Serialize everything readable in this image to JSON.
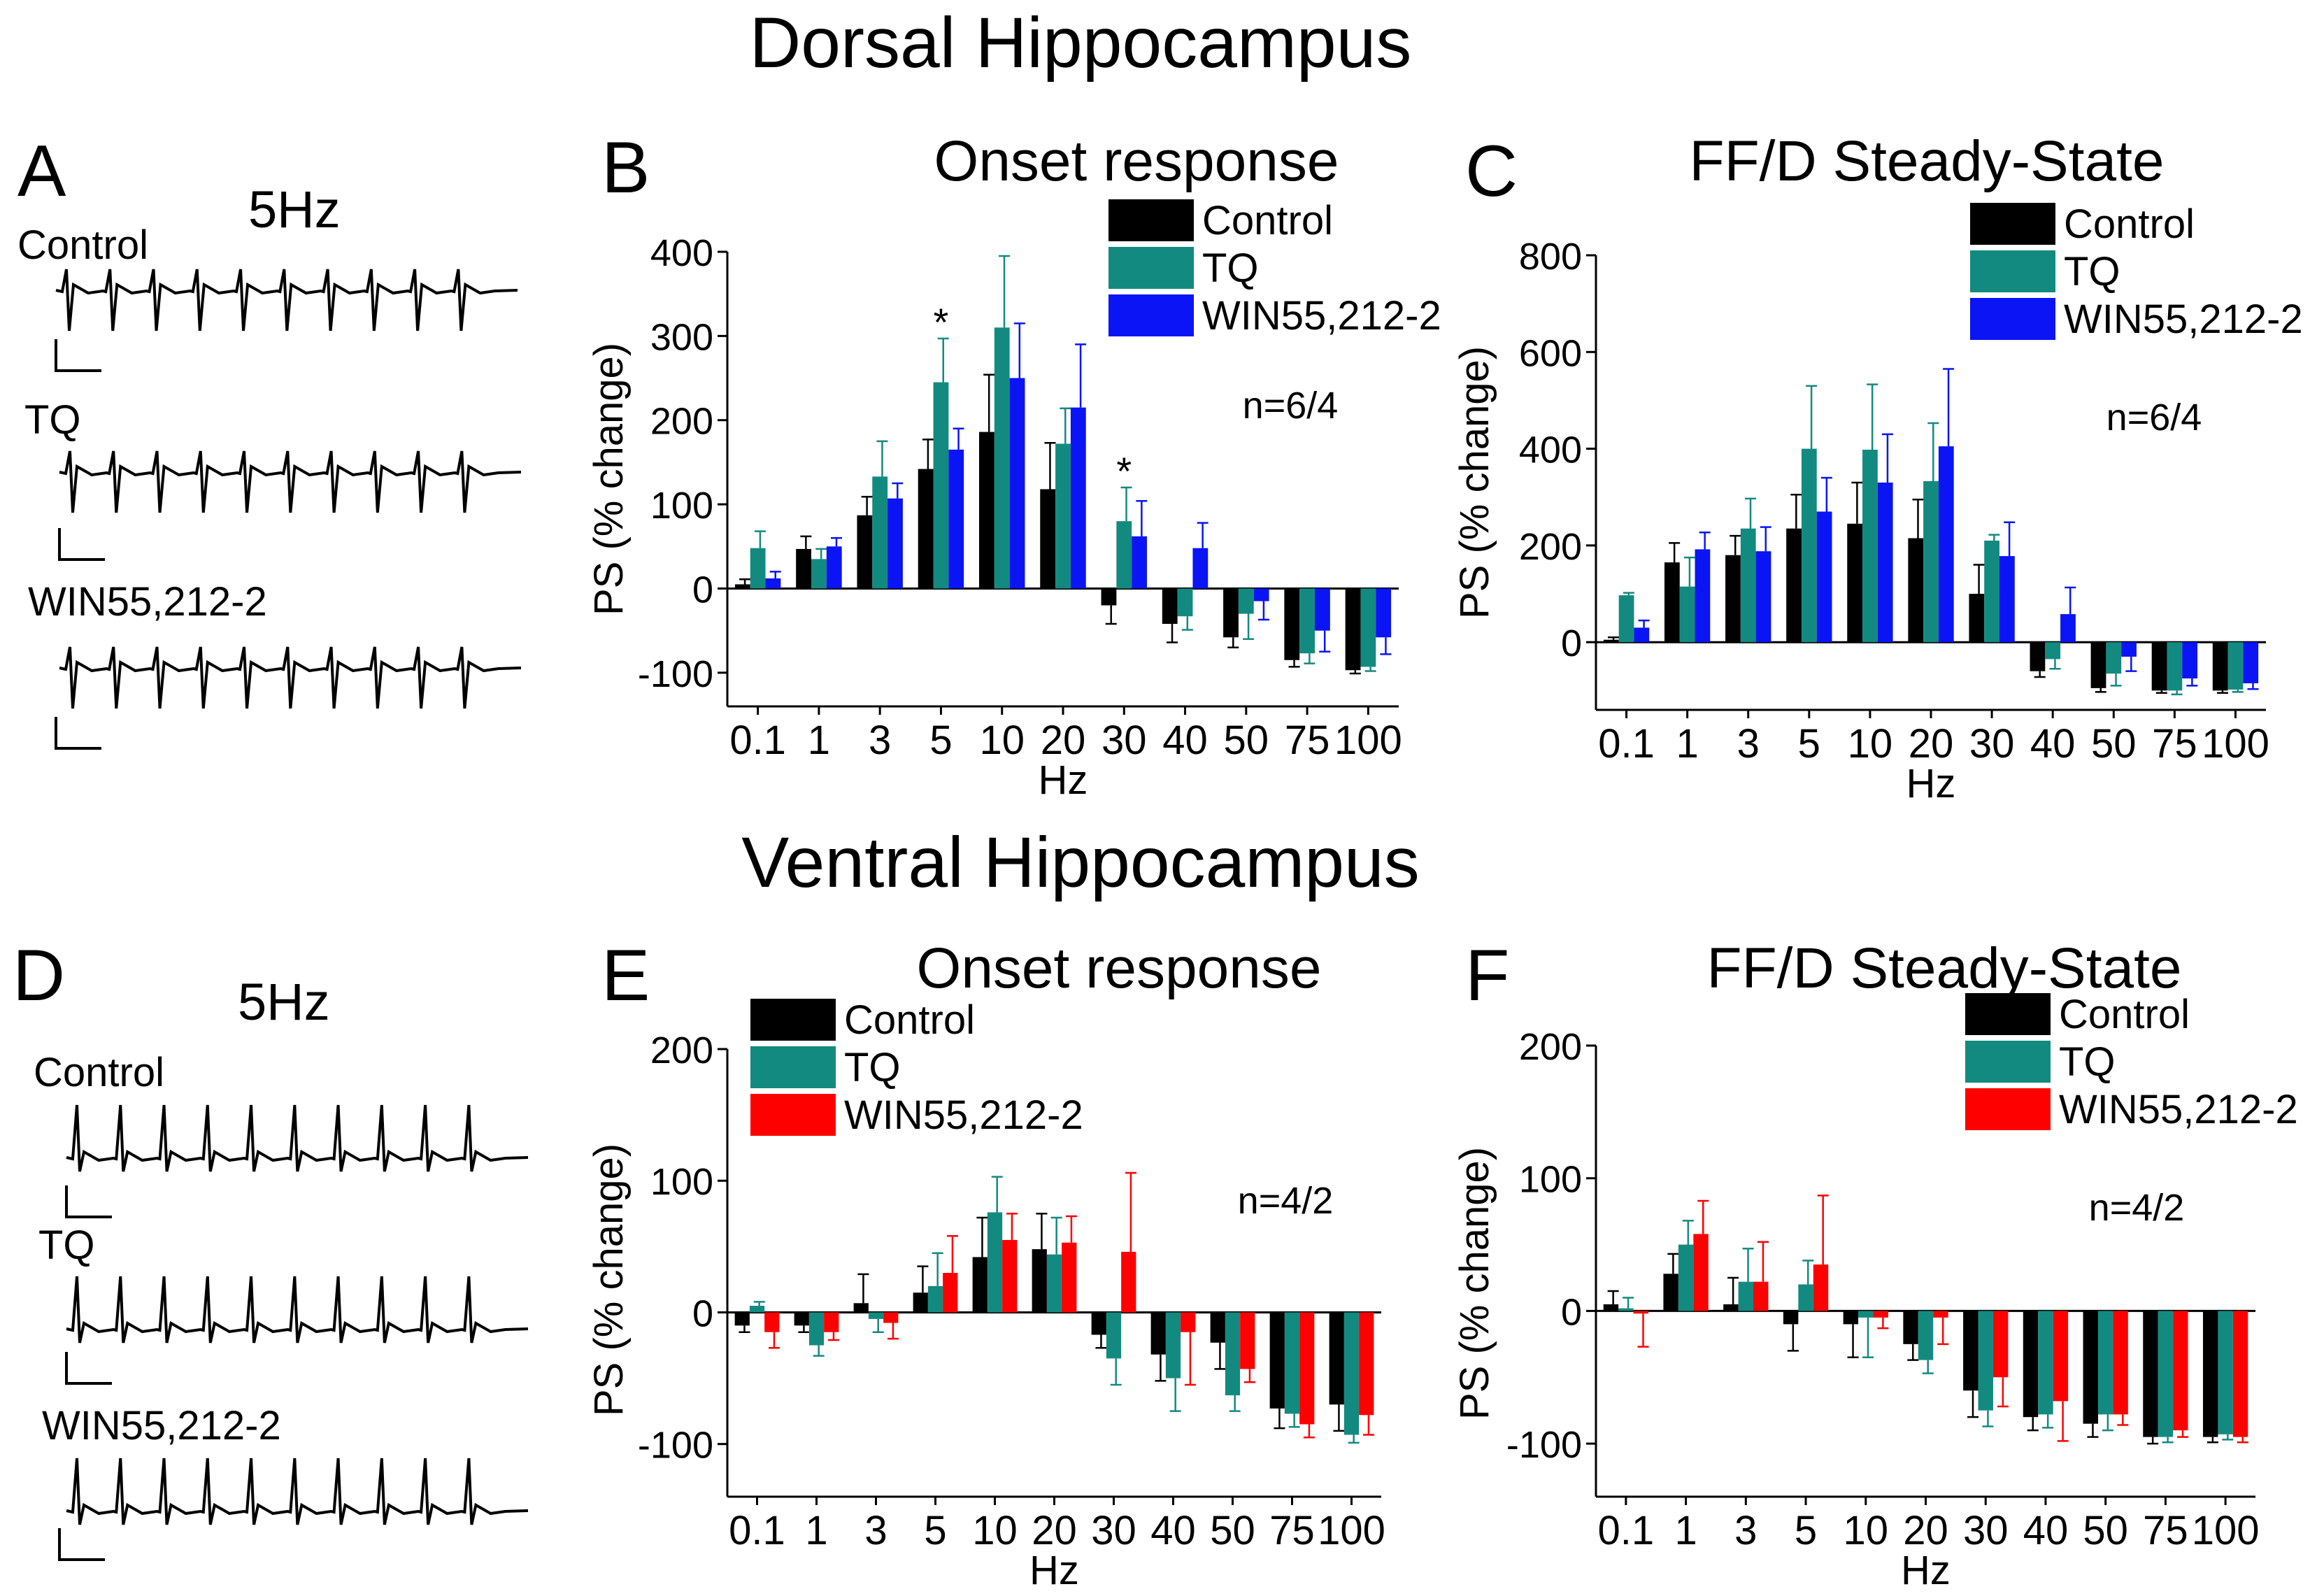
{
  "sections": {
    "dorsal_title": "Dorsal Hippocampus",
    "ventral_title": "Ventral Hippocampus"
  },
  "trace_panels": [
    {
      "letter": "A",
      "frequency": "5Hz",
      "trace_labels": [
        "Control",
        "TQ",
        "WIN55,212-2"
      ]
    },
    {
      "letter": "D",
      "frequency": "5Hz",
      "trace_labels": [
        "Control",
        "TQ",
        "WIN55,212-2"
      ]
    }
  ],
  "colors": {
    "control": "#000000",
    "tq": "#138a80",
    "win_dorsal": "#0a14f5",
    "win_ventral": "#ff0000"
  },
  "chart_data": [
    {
      "panel": "B",
      "title": "Onset response",
      "type": "bar",
      "xlabel": "Hz",
      "ylabel": "PS (% change)",
      "ylim": [
        -140,
        400
      ],
      "yticks": [
        -100,
        0,
        100,
        200,
        300,
        400
      ],
      "categories": [
        "0.1",
        "1",
        "3",
        "5",
        "10",
        "20",
        "30",
        "40",
        "50",
        "75",
        "100"
      ],
      "n_label": "n=6/4",
      "legend_position": "top-right",
      "series": [
        {
          "name": "Control",
          "color": "#000000",
          "values": [
            5,
            47,
            87,
            142,
            186,
            118,
            -20,
            -42,
            -58,
            -85,
            -97
          ],
          "errors": [
            6,
            15,
            22,
            35,
            68,
            55,
            22,
            22,
            12,
            8,
            4
          ]
        },
        {
          "name": "TQ",
          "color": "#138a80",
          "values": [
            48,
            35,
            133,
            245,
            310,
            172,
            80,
            -33,
            -30,
            -77,
            -93
          ],
          "errors": [
            20,
            12,
            42,
            52,
            85,
            42,
            40,
            16,
            30,
            12,
            5
          ]
        },
        {
          "name": "WIN55,212-2",
          "color": "#0a14f5",
          "values": [
            12,
            50,
            107,
            165,
            250,
            215,
            62,
            48,
            -15,
            -50,
            -58
          ],
          "errors": [
            8,
            10,
            18,
            25,
            65,
            75,
            42,
            30,
            22,
            25,
            20
          ]
        }
      ],
      "annotations": [
        {
          "text": "*",
          "category": "5"
        },
        {
          "text": "*",
          "category": "30"
        }
      ]
    },
    {
      "panel": "C",
      "title": "FF/D Steady-State",
      "type": "bar",
      "xlabel": "Hz",
      "ylabel": "PS (% change)",
      "ylim": [
        -140,
        800
      ],
      "yticks": [
        0,
        200,
        400,
        600,
        800
      ],
      "categories": [
        "0.1",
        "1",
        "3",
        "5",
        "10",
        "20",
        "30",
        "40",
        "50",
        "75",
        "100"
      ],
      "n_label": "n=6/4",
      "legend_position": "top-right",
      "series": [
        {
          "name": "Control",
          "color": "#000000",
          "values": [
            5,
            165,
            180,
            235,
            245,
            215,
            100,
            -60,
            -95,
            -100,
            -100
          ],
          "errors": [
            5,
            40,
            40,
            70,
            85,
            80,
            60,
            12,
            8,
            5,
            5
          ]
        },
        {
          "name": "TQ",
          "color": "#138a80",
          "values": [
            97,
            115,
            235,
            400,
            398,
            333,
            210,
            -35,
            -65,
            -100,
            -98
          ],
          "errors": [
            5,
            60,
            62,
            130,
            135,
            120,
            12,
            20,
            25,
            8,
            5
          ]
        },
        {
          "name": "WIN55,212-2",
          "color": "#0a14f5",
          "values": [
            30,
            192,
            188,
            270,
            330,
            405,
            178,
            58,
            -30,
            -75,
            -85
          ],
          "errors": [
            15,
            35,
            50,
            70,
            100,
            160,
            70,
            55,
            30,
            15,
            12
          ]
        }
      ]
    },
    {
      "panel": "E",
      "title": "Onset response",
      "type": "bar",
      "xlabel": "Hz",
      "ylabel": "PS (% change)",
      "ylim": [
        -140,
        200
      ],
      "yticks": [
        -100,
        0,
        100,
        200
      ],
      "categories": [
        "0.1",
        "1",
        "3",
        "5",
        "10",
        "20",
        "30",
        "40",
        "50",
        "75",
        "100"
      ],
      "n_label": "n=4/2",
      "legend_position": "top-left",
      "series": [
        {
          "name": "Control",
          "color": "#000000",
          "values": [
            -10,
            -10,
            7,
            15,
            42,
            48,
            -17,
            -32,
            -23,
            -73,
            -70
          ],
          "errors": [
            5,
            5,
            22,
            20,
            30,
            27,
            10,
            20,
            20,
            15,
            20
          ]
        },
        {
          "name": "TQ",
          "color": "#138a80",
          "values": [
            5,
            -25,
            -5,
            20,
            76,
            44,
            -35,
            -50,
            -63,
            -77,
            -93
          ],
          "errors": [
            3,
            8,
            10,
            25,
            27,
            28,
            20,
            25,
            12,
            10,
            6
          ]
        },
        {
          "name": "WIN55,212-2",
          "color": "#ff0000",
          "values": [
            -15,
            -15,
            -8,
            30,
            55,
            53,
            46,
            -15,
            -43,
            -85,
            -78
          ],
          "errors": [
            12,
            6,
            12,
            28,
            20,
            20,
            60,
            40,
            10,
            10,
            15
          ]
        }
      ]
    },
    {
      "panel": "F",
      "title": "FF/D Steady-State",
      "type": "bar",
      "xlabel": "Hz",
      "ylabel": "PS (% change)",
      "ylim": [
        -140,
        200
      ],
      "yticks": [
        -100,
        0,
        100,
        200
      ],
      "categories": [
        "0.1",
        "1",
        "3",
        "5",
        "10",
        "20",
        "30",
        "40",
        "50",
        "75",
        "100"
      ],
      "n_label": "n=4/2",
      "legend_position": "top-right",
      "series": [
        {
          "name": "Control",
          "color": "#000000",
          "values": [
            5,
            28,
            5,
            -10,
            -10,
            -25,
            -60,
            -80,
            -85,
            -95,
            -95
          ],
          "errors": [
            10,
            15,
            20,
            20,
            25,
            12,
            20,
            10,
            10,
            5,
            4
          ]
        },
        {
          "name": "TQ",
          "color": "#138a80",
          "values": [
            2,
            50,
            22,
            20,
            -5,
            -37,
            -75,
            -78,
            -78,
            -95,
            -93
          ],
          "errors": [
            8,
            18,
            25,
            18,
            30,
            10,
            12,
            10,
            12,
            4,
            4
          ]
        },
        {
          "name": "WIN55,212-2",
          "color": "#ff0000",
          "values": [
            -2,
            58,
            22,
            35,
            -5,
            -5,
            -50,
            -68,
            -78,
            -90,
            -95
          ],
          "errors": [
            25,
            25,
            30,
            52,
            8,
            20,
            22,
            30,
            8,
            5,
            4
          ]
        }
      ]
    }
  ]
}
